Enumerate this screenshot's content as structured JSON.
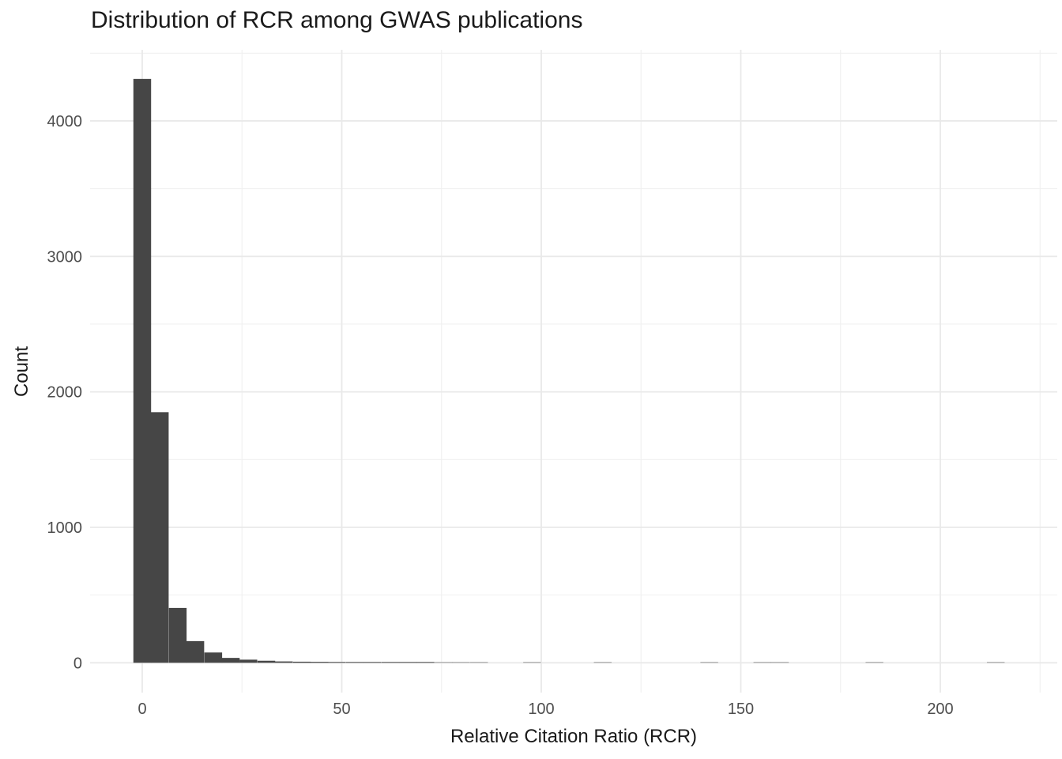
{
  "figure": {
    "title": "Distribution of RCR among GWAS publications"
  },
  "chart_data": {
    "type": "bar",
    "subtype": "histogram",
    "title": "Distribution of RCR among GWAS publications",
    "xlabel": "Relative Citation Ratio (RCR)",
    "ylabel": "Count",
    "x_ticks": [
      0,
      50,
      100,
      150,
      200
    ],
    "x_minor_ticks": [
      25,
      75,
      125,
      175,
      225
    ],
    "y_ticks": [
      0,
      1000,
      2000,
      3000,
      4000
    ],
    "y_minor_ticks": [
      500,
      1500,
      2500,
      3500,
      4500
    ],
    "xlim": [
      -13,
      229
    ],
    "ylim": [
      0,
      4525
    ],
    "bin_width": 4.44,
    "bins": {
      "centers": [
        0,
        4.4,
        8.9,
        13.3,
        17.8,
        22.2,
        26.6,
        31.1,
        35.5,
        40,
        44.4,
        48.8,
        53.3,
        57.7,
        62.2,
        66.6,
        71,
        75.5,
        79.9,
        84.4,
        97.7,
        115.4,
        142.1,
        155.4,
        159.8,
        183.5,
        213.9
      ],
      "counts": [
        4310,
        1850,
        405,
        160,
        76,
        36,
        23,
        15,
        10,
        8,
        7,
        6,
        5,
        4,
        4,
        3,
        3,
        1,
        1,
        2,
        2,
        2,
        1,
        1,
        1,
        1,
        1
      ]
    },
    "bar_color": "#464646",
    "grid_major_color": "#e9e9e9",
    "grid_minor_color": "#f0f0f0",
    "tick_label_color": "#4d4d4d",
    "title_color": "#1a1a1a",
    "background": "#ffffff",
    "legend": "none",
    "grid": "major+minor"
  }
}
